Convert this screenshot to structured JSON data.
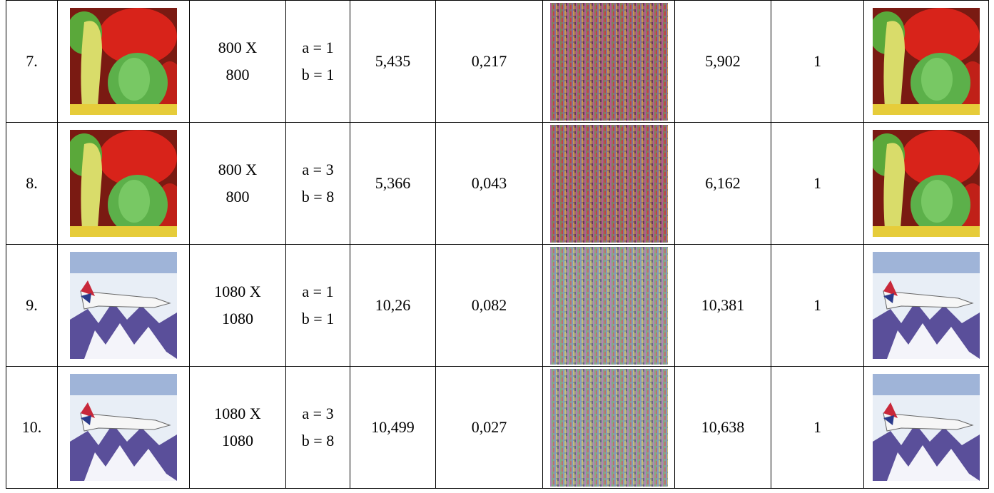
{
  "table": {
    "rows": [
      {
        "no": "7.",
        "size": [
          "800 X",
          "800"
        ],
        "key": [
          "a = 1",
          "b = 1"
        ],
        "c1": "5,435",
        "c2": "0,217",
        "c3": "5,902",
        "c4": "1"
      },
      {
        "no": "8.",
        "size": [
          "800 X",
          "800"
        ],
        "key": [
          "a = 3",
          "b = 8"
        ],
        "c1": "5,366",
        "c2": "0,043",
        "c3": "6,162",
        "c4": "1"
      },
      {
        "no": "9.",
        "size": [
          "1080 X",
          "1080"
        ],
        "key": [
          "a = 1",
          "b = 1"
        ],
        "c1": "10,26",
        "c2": "0,082",
        "c3": "10,381",
        "c4": "1"
      },
      {
        "no": "10.",
        "size": [
          "1080 X",
          "1080"
        ],
        "key": [
          "a = 3",
          "b = 8"
        ],
        "c1": "10,499",
        "c2": "0,027",
        "c3": "10,638",
        "c4": "1"
      }
    ]
  }
}
